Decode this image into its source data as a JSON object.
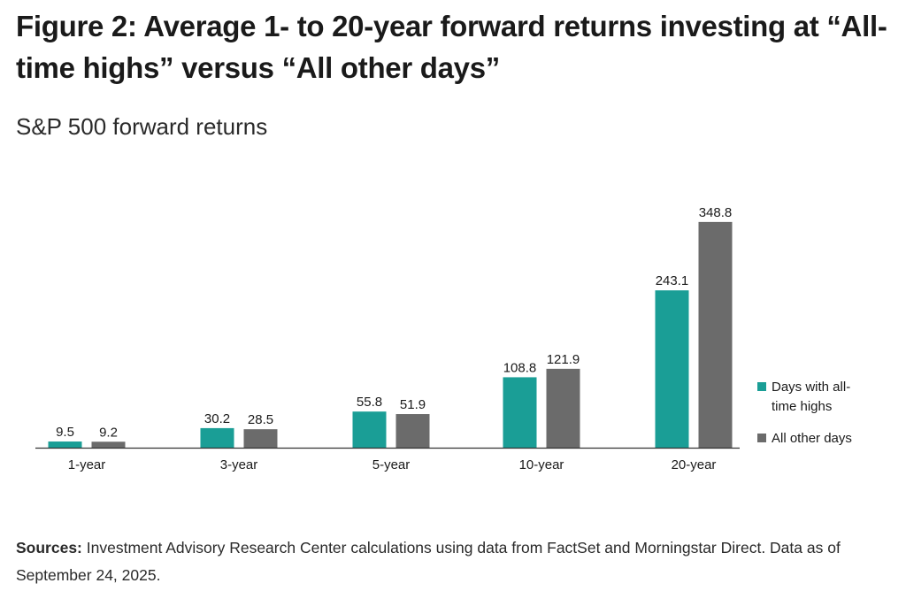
{
  "header": {
    "title": "Figure 2: Average 1- to 20-year forward returns investing at “All-time highs” versus “All other days”",
    "subtitle": "S&P 500 forward returns"
  },
  "footer": {
    "sources_label": "Sources:",
    "sources_text": " Investment Advisory Research Center calculations using data from FactSet and Morningstar Direct. Data as of September 24, 2025."
  },
  "chart_data": {
    "type": "bar",
    "title": "",
    "xlabel": "",
    "ylabel": "",
    "categories": [
      "1-year",
      "3-year",
      "5-year",
      "10-year",
      "20-year"
    ],
    "series": [
      {
        "name": "Days with all-time highs",
        "values": [
          9.5,
          30.2,
          55.8,
          108.8,
          243.1
        ],
        "color": "#1a9e96"
      },
      {
        "name": "All other days",
        "values": [
          9.2,
          28.5,
          51.9,
          121.9,
          348.8
        ],
        "color": "#6b6b6b"
      }
    ],
    "legend": {
      "placement": "right",
      "lines": [
        [
          "Days with all-",
          "time highs"
        ],
        [
          "All other days"
        ]
      ]
    },
    "ylim": [
      0,
      350
    ],
    "grid": false,
    "axis_color": "#333333"
  }
}
